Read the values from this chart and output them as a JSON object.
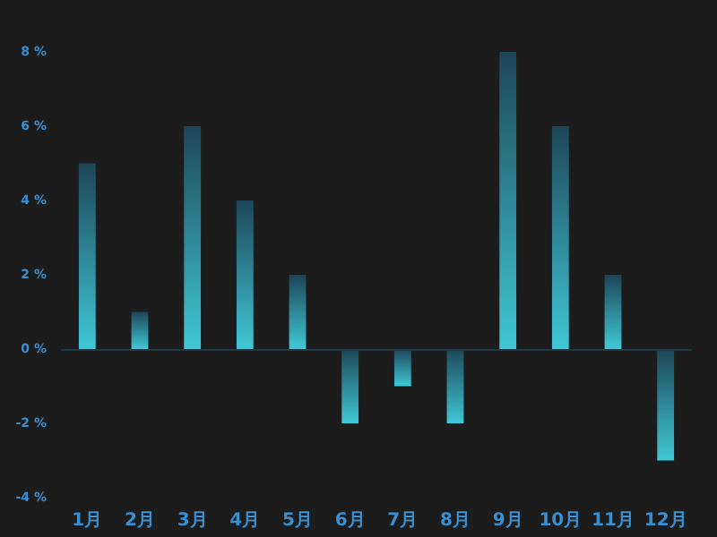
{
  "chart_data": {
    "type": "bar",
    "categories": [
      "1月",
      "2月",
      "3月",
      "4月",
      "5月",
      "6月",
      "7月",
      "8月",
      "9月",
      "10月",
      "11月",
      "12月"
    ],
    "values": [
      5,
      1,
      6,
      4,
      2,
      -2,
      -1,
      -2,
      8,
      6,
      2,
      -3
    ],
    "color": "#40c8d6",
    "ylim": [
      -4,
      8
    ],
    "yticks": [
      {
        "value": 8,
        "label": "8 %"
      },
      {
        "value": 6,
        "label": "6 %"
      },
      {
        "value": 4,
        "label": "4 %"
      },
      {
        "value": 2,
        "label": "2 %"
      },
      {
        "value": 0,
        "label": "0 %"
      },
      {
        "value": -2,
        "label": "-2 %"
      },
      {
        "value": -4,
        "label": "-4 %"
      }
    ],
    "ref_lines": [
      {
        "axis": "y",
        "value": 0,
        "color": "#1f3a44"
      }
    ],
    "grid": false
  }
}
